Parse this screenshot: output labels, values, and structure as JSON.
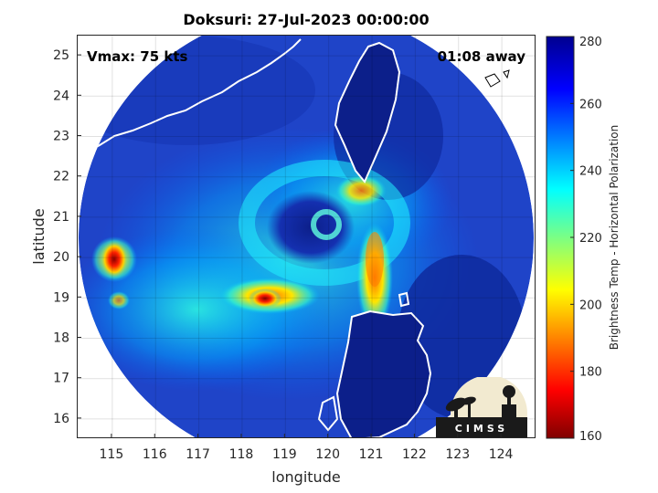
{
  "title": "Doksuri: 27-Jul-2023 00:00:00",
  "annotations": {
    "vmax": "Vmax: 75 kts",
    "time_away": "01:08 away"
  },
  "axes": {
    "xlabel": "longitude",
    "ylabel": "latitude",
    "xlim": [
      114.2,
      124.8
    ],
    "ylim": [
      15.5,
      25.5
    ],
    "xticks": [
      "115",
      "116",
      "117",
      "118",
      "119",
      "120",
      "121",
      "122",
      "123",
      "124"
    ],
    "yticks": [
      "16",
      "17",
      "18",
      "19",
      "20",
      "21",
      "22",
      "23",
      "24",
      "25"
    ]
  },
  "colorbar": {
    "label": "Brightness Temp - Horizontal Polarization",
    "range": [
      160,
      280
    ],
    "ticks": [
      "160",
      "180",
      "200",
      "220",
      "240",
      "260",
      "280"
    ],
    "colormap": "jet"
  },
  "logo_text": "CIMSS",
  "colors": {
    "ocean": "#1f3fbd",
    "deep_blue": "#0a1f8f",
    "coast": "#ffffff"
  }
}
